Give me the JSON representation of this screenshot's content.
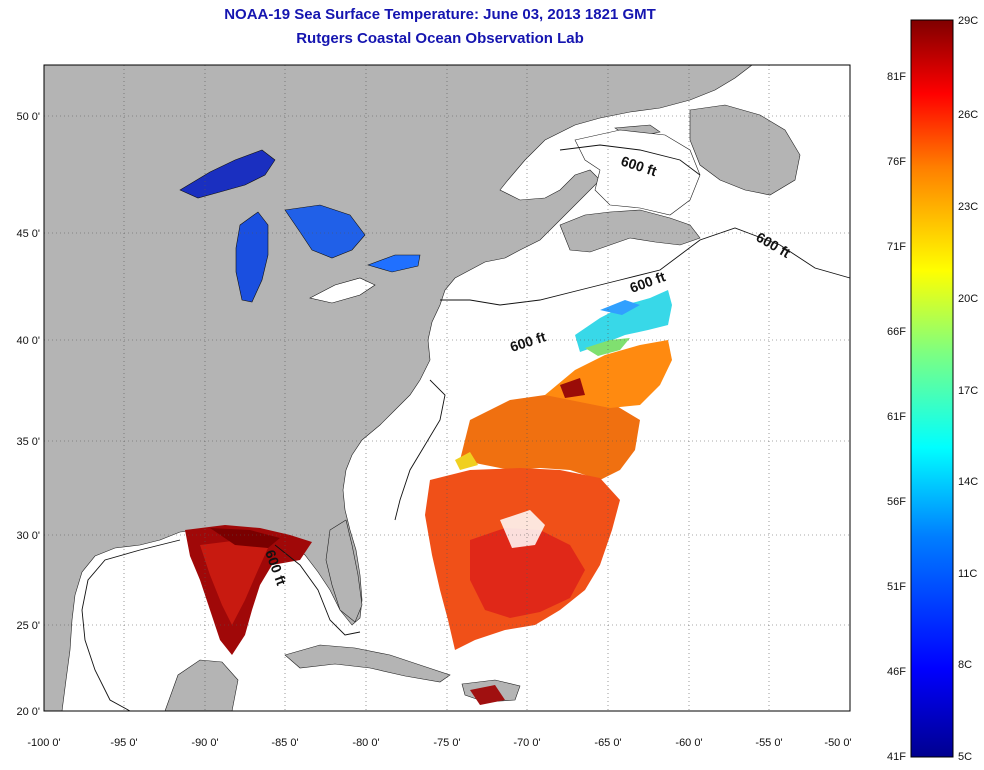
{
  "title": "NOAA-19 Sea Surface Temperature:  June 03, 2013 1821 GMT",
  "subtitle": "Rutgers Coastal Ocean Observation Lab",
  "axes": {
    "x_ticks": [
      "-100 0'",
      "-95 0'",
      "-90 0'",
      "-85 0'",
      "-80 0'",
      "-75 0'",
      "-70 0'",
      "-65 0'",
      "-60 0'",
      "-55 0'",
      "-50 0'"
    ],
    "y_ticks": [
      "20 0'",
      "25 0'",
      "30 0'",
      "35 0'",
      "40 0'",
      "45 0'",
      "50 0'"
    ],
    "lon_range": [
      -100,
      -50
    ],
    "lat_range": [
      20,
      52
    ],
    "grid": "dotted"
  },
  "contour_label": "600 ft",
  "colorbar": {
    "celsius": [
      "29C",
      "26C",
      "23C",
      "20C",
      "17C",
      "14C",
      "11C",
      "8C",
      "5C"
    ],
    "fahrenheit": [
      "81F",
      "76F",
      "71F",
      "66F",
      "61F",
      "56F",
      "51F",
      "46F",
      "41F"
    ],
    "colors": [
      "#00008f",
      "#0000ff",
      "#007fff",
      "#00ffff",
      "#7fff7f",
      "#ffff00",
      "#ff7f00",
      "#ff0000",
      "#7f0000"
    ]
  },
  "colors": {
    "land": "#b4b4b4",
    "title": "#1515b0"
  }
}
